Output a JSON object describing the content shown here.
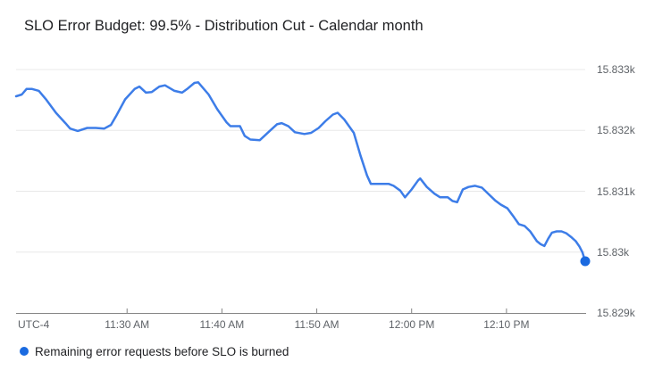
{
  "chart_data": {
    "type": "line",
    "title": "SLO Error Budget: 99.5% - Distribution Cut - Calendar month",
    "grid": true,
    "legend_position": "bottom-left",
    "colors": {
      "line": "#3d7de8",
      "end_marker": "#1a6ae0",
      "legend_dot": "#1a6ae0",
      "gridline": "#e8e8e8",
      "axis_line": "#848484",
      "tick_label": "#5f6368",
      "title": "#202124"
    },
    "x_axis": {
      "timezone_label": "UTC-4",
      "domain_minutes": [
        0,
        60
      ],
      "ticks": [
        {
          "m": 11.7,
          "label": "11:30 AM"
        },
        {
          "m": 21.7,
          "label": "11:40 AM"
        },
        {
          "m": 31.7,
          "label": "11:50 AM"
        },
        {
          "m": 41.7,
          "label": "12:00 PM"
        },
        {
          "m": 51.7,
          "label": "12:10 PM"
        }
      ]
    },
    "y_axis": {
      "domain": [
        15829,
        15833.18
      ],
      "ticks": [
        {
          "v": 15833,
          "label": "15.833k"
        },
        {
          "v": 15832,
          "label": "15.832k"
        },
        {
          "v": 15831,
          "label": "15.831k"
        },
        {
          "v": 15830,
          "label": "15.83k"
        },
        {
          "v": 15829,
          "label": "15.829k"
        }
      ]
    },
    "legend": {
      "items": [
        {
          "label": "Remaining error requests before SLO is burned",
          "color": "#1a6ae0"
        }
      ]
    },
    "series": [
      {
        "name": "Remaining error requests before SLO is burned",
        "color": "#3d7de8",
        "end_marker": true,
        "points": [
          [
            0,
            15832.56
          ],
          [
            0.6,
            15832.59
          ],
          [
            1.1,
            15832.68
          ],
          [
            1.7,
            15832.68
          ],
          [
            2.4,
            15832.65
          ],
          [
            3.2,
            15832.5
          ],
          [
            4.2,
            15832.29
          ],
          [
            5.2,
            15832.12
          ],
          [
            5.7,
            15832.03
          ],
          [
            6.5,
            15831.99
          ],
          [
            7.5,
            15832.04
          ],
          [
            8.4,
            15832.04
          ],
          [
            9.3,
            15832.03
          ],
          [
            10,
            15832.09
          ],
          [
            10.6,
            15832.25
          ],
          [
            11.5,
            15832.51
          ],
          [
            12.5,
            15832.68
          ],
          [
            13,
            15832.72
          ],
          [
            13.7,
            15832.62
          ],
          [
            14.3,
            15832.63
          ],
          [
            15.1,
            15832.72
          ],
          [
            15.7,
            15832.74
          ],
          [
            16.7,
            15832.65
          ],
          [
            17.5,
            15832.62
          ],
          [
            18.1,
            15832.69
          ],
          [
            18.8,
            15832.78
          ],
          [
            19.2,
            15832.79
          ],
          [
            20.3,
            15832.59
          ],
          [
            21.2,
            15832.35
          ],
          [
            22.2,
            15832.13
          ],
          [
            22.6,
            15832.07
          ],
          [
            23.6,
            15832.07
          ],
          [
            24.1,
            15831.91
          ],
          [
            24.7,
            15831.85
          ],
          [
            25.7,
            15831.84
          ],
          [
            26.8,
            15832.0
          ],
          [
            27.5,
            15832.1
          ],
          [
            28,
            15832.12
          ],
          [
            28.7,
            15832.07
          ],
          [
            29.4,
            15831.97
          ],
          [
            30.4,
            15831.94
          ],
          [
            31.1,
            15831.96
          ],
          [
            31.9,
            15832.04
          ],
          [
            32.6,
            15832.15
          ],
          [
            33.4,
            15832.26
          ],
          [
            33.9,
            15832.29
          ],
          [
            34.6,
            15832.18
          ],
          [
            35.6,
            15831.96
          ],
          [
            36.3,
            15831.59
          ],
          [
            37,
            15831.26
          ],
          [
            37.4,
            15831.12
          ],
          [
            39.3,
            15831.12
          ],
          [
            39.8,
            15831.09
          ],
          [
            40.5,
            15831.01
          ],
          [
            41,
            15830.9
          ],
          [
            41.7,
            15831.03
          ],
          [
            42.4,
            15831.18
          ],
          [
            42.6,
            15831.21
          ],
          [
            43.3,
            15831.07
          ],
          [
            44.1,
            15830.96
          ],
          [
            44.7,
            15830.9
          ],
          [
            45.5,
            15830.9
          ],
          [
            46,
            15830.84
          ],
          [
            46.5,
            15830.82
          ],
          [
            47.1,
            15831.03
          ],
          [
            47.7,
            15831.07
          ],
          [
            48.4,
            15831.09
          ],
          [
            49.1,
            15831.06
          ],
          [
            49.7,
            15830.97
          ],
          [
            50.5,
            15830.85
          ],
          [
            51.1,
            15830.78
          ],
          [
            51.8,
            15830.72
          ],
          [
            52.5,
            15830.57
          ],
          [
            53,
            15830.46
          ],
          [
            53.6,
            15830.43
          ],
          [
            54.2,
            15830.34
          ],
          [
            54.9,
            15830.18
          ],
          [
            55.3,
            15830.13
          ],
          [
            55.7,
            15830.1
          ],
          [
            56.1,
            15830.22
          ],
          [
            56.5,
            15830.32
          ],
          [
            57,
            15830.34
          ],
          [
            57.5,
            15830.34
          ],
          [
            58,
            15830.31
          ],
          [
            58.5,
            15830.25
          ],
          [
            59,
            15830.18
          ],
          [
            59.4,
            15830.09
          ],
          [
            59.7,
            15830.0
          ],
          [
            60,
            15829.85
          ]
        ]
      }
    ]
  }
}
